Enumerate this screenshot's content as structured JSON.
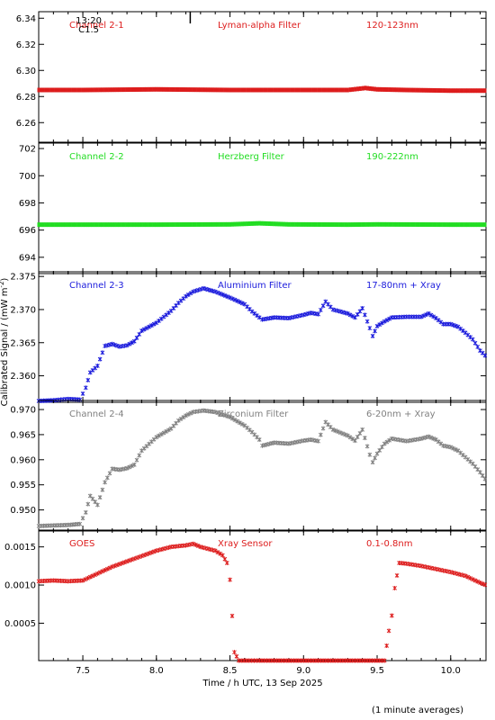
{
  "figure": {
    "xlabel": "Time / h UTC, 13 Sep 2025",
    "ylabel": "Calibrated Signal / (mW m",
    "ylabel_sup": "-2",
    "ylabel_end": ")",
    "footnote": "(1 minute averages)"
  },
  "chart_data": [
    {
      "type": "scatter",
      "name": "Channel 2-1",
      "title": "Channel 2-1",
      "subtitle": "Lyman-alpha Filter",
      "range_label": "120-123nm",
      "color": "#dd1c1c",
      "ylim": [
        6.245,
        6.345
      ],
      "yticks": [
        6.26,
        6.28,
        6.3,
        6.32,
        6.34
      ],
      "ytick_labels": [
        "6.26",
        "6.28",
        "6.30",
        "6.32",
        "6.34"
      ],
      "annotations": [
        {
          "text": "13:20",
          "x": 7.54,
          "y": 6.336
        },
        {
          "text": "C1.5",
          "x": 7.54,
          "y": 6.329
        }
      ],
      "marker_line": {
        "x": 8.23,
        "y_from": 6.345,
        "y_to": 6.336
      },
      "points": [
        [
          7.2,
          6.285
        ],
        [
          7.5,
          6.285
        ],
        [
          8.0,
          6.2855
        ],
        [
          8.5,
          6.285
        ],
        [
          9.0,
          6.285
        ],
        [
          9.3,
          6.285
        ],
        [
          9.42,
          6.2865
        ],
        [
          9.5,
          6.2855
        ],
        [
          9.7,
          6.285
        ],
        [
          10.0,
          6.2845
        ],
        [
          10.25,
          6.2845
        ]
      ]
    },
    {
      "type": "scatter",
      "name": "Channel 2-2",
      "title": "Channel 2-2",
      "subtitle": "Herzberg Filter",
      "range_label": "190-222nm",
      "color": "#22dd22",
      "ylim": [
        692.8,
        702.4
      ],
      "yticks": [
        694,
        696,
        698,
        700,
        702
      ],
      "ytick_labels": [
        "694",
        "696",
        "698",
        "700",
        "702"
      ],
      "points": [
        [
          7.2,
          696.4
        ],
        [
          7.5,
          696.4
        ],
        [
          8.0,
          696.4
        ],
        [
          8.5,
          696.42
        ],
        [
          8.7,
          696.5
        ],
        [
          8.9,
          696.42
        ],
        [
          9.3,
          696.4
        ],
        [
          9.5,
          696.42
        ],
        [
          10.0,
          696.4
        ],
        [
          10.25,
          696.4
        ]
      ]
    },
    {
      "type": "scatter",
      "name": "Channel 2-3",
      "title": "Channel 2-3",
      "subtitle": "Aluminium Filter",
      "range_label": "17-80nm + Xray",
      "color": "#1a1adc",
      "ylim": [
        2.356,
        2.3757
      ],
      "yticks": [
        2.36,
        2.365,
        2.37,
        2.375
      ],
      "ytick_labels": [
        "2.360",
        "2.365",
        "2.370",
        "2.375"
      ],
      "points": [
        [
          7.2,
          2.3562
        ],
        [
          7.3,
          2.3563
        ],
        [
          7.4,
          2.3565
        ],
        [
          7.48,
          2.3564
        ],
        [
          7.52,
          2.3582
        ],
        [
          7.55,
          2.3605
        ],
        [
          7.6,
          2.3615
        ],
        [
          7.65,
          2.3645
        ],
        [
          7.7,
          2.3648
        ],
        [
          7.75,
          2.3644
        ],
        [
          7.8,
          2.3646
        ],
        [
          7.85,
          2.3652
        ],
        [
          7.9,
          2.3668
        ],
        [
          8.0,
          2.368
        ],
        [
          8.1,
          2.3698
        ],
        [
          8.15,
          2.371
        ],
        [
          8.2,
          2.372
        ],
        [
          8.25,
          2.3727
        ],
        [
          8.32,
          2.3732
        ],
        [
          8.4,
          2.3727
        ],
        [
          8.5,
          2.3718
        ],
        [
          8.6,
          2.3708
        ],
        [
          8.65,
          2.3697
        ],
        [
          8.7,
          2.3688
        ],
        [
          8.72,
          2.3685
        ],
        [
          8.8,
          2.3688
        ],
        [
          8.9,
          2.3687
        ],
        [
          9.0,
          2.3692
        ],
        [
          9.05,
          2.3695
        ],
        [
          9.1,
          2.3693
        ],
        [
          9.15,
          2.3712
        ],
        [
          9.2,
          2.37
        ],
        [
          9.3,
          2.3694
        ],
        [
          9.35,
          2.3688
        ],
        [
          9.4,
          2.3702
        ],
        [
          9.45,
          2.3672
        ],
        [
          9.47,
          2.366
        ],
        [
          9.5,
          2.3675
        ],
        [
          9.55,
          2.3682
        ],
        [
          9.6,
          2.3688
        ],
        [
          9.7,
          2.3689
        ],
        [
          9.8,
          2.3689
        ],
        [
          9.85,
          2.3694
        ],
        [
          9.9,
          2.3687
        ],
        [
          9.95,
          2.3678
        ],
        [
          10.0,
          2.3678
        ],
        [
          10.05,
          2.3674
        ],
        [
          10.1,
          2.3665
        ],
        [
          10.15,
          2.3655
        ],
        [
          10.2,
          2.3638
        ],
        [
          10.25,
          2.3627
        ]
      ]
    },
    {
      "type": "scatter",
      "name": "Channel 2-4",
      "title": "Channel 2-4",
      "subtitle": "Zirconium Filter",
      "range_label": "6-20nm + Xray",
      "color": "#808080",
      "ylim": [
        0.9458,
        0.9718
      ],
      "yticks": [
        0.95,
        0.955,
        0.96,
        0.965,
        0.97
      ],
      "ytick_labels": [
        "0.950",
        "0.955",
        "0.960",
        "0.965",
        "0.970"
      ],
      "points": [
        [
          7.2,
          0.9468
        ],
        [
          7.3,
          0.9469
        ],
        [
          7.4,
          0.947
        ],
        [
          7.48,
          0.9472
        ],
        [
          7.52,
          0.9495
        ],
        [
          7.55,
          0.9528
        ],
        [
          7.6,
          0.951
        ],
        [
          7.65,
          0.9555
        ],
        [
          7.7,
          0.9582
        ],
        [
          7.75,
          0.958
        ],
        [
          7.8,
          0.9583
        ],
        [
          7.85,
          0.959
        ],
        [
          7.9,
          0.9618
        ],
        [
          8.0,
          0.9645
        ],
        [
          8.1,
          0.9662
        ],
        [
          8.15,
          0.9678
        ],
        [
          8.2,
          0.9688
        ],
        [
          8.25,
          0.9695
        ],
        [
          8.32,
          0.9698
        ],
        [
          8.4,
          0.9695
        ],
        [
          8.5,
          0.9685
        ],
        [
          8.6,
          0.9668
        ],
        [
          8.65,
          0.9655
        ],
        [
          8.7,
          0.964
        ],
        [
          8.72,
          0.9628
        ],
        [
          8.8,
          0.9634
        ],
        [
          8.9,
          0.9632
        ],
        [
          9.0,
          0.9638
        ],
        [
          9.05,
          0.964
        ],
        [
          9.1,
          0.9637
        ],
        [
          9.15,
          0.9675
        ],
        [
          9.2,
          0.966
        ],
        [
          9.3,
          0.9648
        ],
        [
          9.35,
          0.9638
        ],
        [
          9.4,
          0.966
        ],
        [
          9.45,
          0.961
        ],
        [
          9.47,
          0.9595
        ],
        [
          9.5,
          0.9612
        ],
        [
          9.55,
          0.9632
        ],
        [
          9.6,
          0.9642
        ],
        [
          9.7,
          0.9637
        ],
        [
          9.8,
          0.9642
        ],
        [
          9.85,
          0.9646
        ],
        [
          9.9,
          0.964
        ],
        [
          9.95,
          0.9628
        ],
        [
          10.0,
          0.9625
        ],
        [
          10.05,
          0.9618
        ],
        [
          10.1,
          0.9605
        ],
        [
          10.15,
          0.9592
        ],
        [
          10.2,
          0.9575
        ],
        [
          10.25,
          0.9555
        ]
      ]
    },
    {
      "type": "scatter",
      "name": "GOES",
      "title": "GOES",
      "subtitle": "Xray Sensor",
      "range_label": "0.1-0.8nm",
      "color": "#dd1c1c",
      "ylim": [
        1e-05,
        0.00172
      ],
      "yticks": [
        0.0005,
        0.001,
        0.0015
      ],
      "ytick_labels": [
        "0.0005",
        "0.0010",
        "0.0015"
      ],
      "points": [
        [
          7.2,
          0.00105
        ],
        [
          7.3,
          0.00106
        ],
        [
          7.4,
          0.00105
        ],
        [
          7.5,
          0.00106
        ],
        [
          7.6,
          0.00115
        ],
        [
          7.7,
          0.00124
        ],
        [
          7.8,
          0.00131
        ],
        [
          7.9,
          0.00138
        ],
        [
          8.0,
          0.00145
        ],
        [
          8.1,
          0.0015
        ],
        [
          8.2,
          0.00152
        ],
        [
          8.25,
          0.00154
        ],
        [
          8.3,
          0.0015
        ],
        [
          8.4,
          0.00145
        ],
        [
          8.45,
          0.00139
        ],
        [
          8.48,
          0.00129
        ],
        [
          8.5,
          0.00107
        ],
        [
          8.53,
          0.00012
        ],
        [
          8.56,
          1e-05
        ],
        [
          8.7,
          1e-05
        ],
        [
          9.0,
          1e-05
        ],
        [
          9.3,
          1e-05
        ],
        [
          9.55,
          1e-05
        ],
        [
          9.58,
          0.0004
        ],
        [
          9.6,
          0.0006
        ],
        [
          9.62,
          0.00096
        ],
        [
          9.65,
          0.00129
        ],
        [
          9.7,
          0.00128
        ],
        [
          9.8,
          0.00125
        ],
        [
          9.9,
          0.00121
        ],
        [
          10.0,
          0.00117
        ],
        [
          10.1,
          0.00112
        ],
        [
          10.2,
          0.00103
        ],
        [
          10.25,
          0.00099
        ]
      ]
    }
  ],
  "x_axis": {
    "xlim": [
      7.2,
      10.24
    ],
    "ticks": [
      7.5,
      8.0,
      8.5,
      9.0,
      9.5,
      10.0
    ],
    "tick_labels": [
      "7.5",
      "8.0",
      "8.5",
      "9.0",
      "9.5",
      "10.0"
    ]
  }
}
